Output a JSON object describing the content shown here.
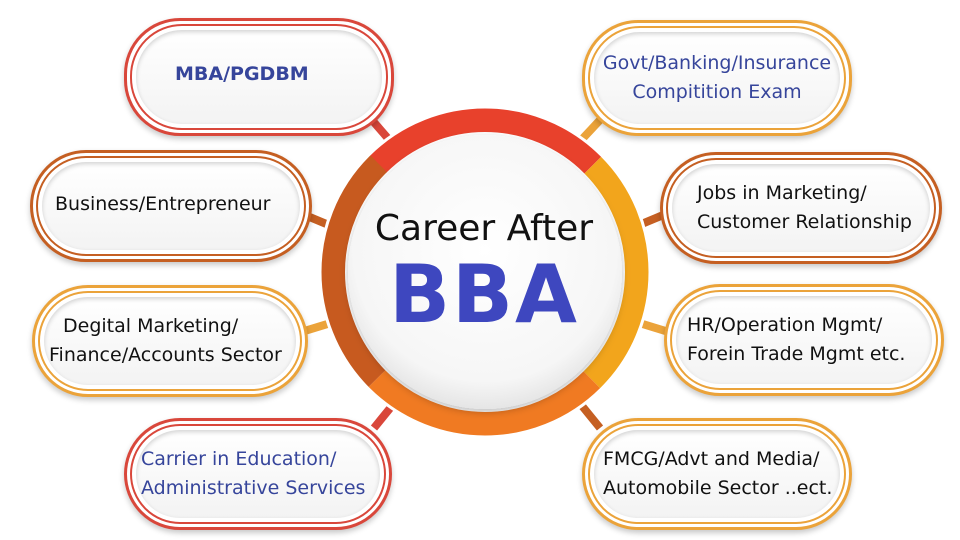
{
  "hub": {
    "line1": "Career After",
    "line2": "BBA"
  },
  "options": [
    {
      "id": "p1",
      "lines": [
        "MBA/PGDBM"
      ]
    },
    {
      "id": "p2",
      "lines": [
        "Business/Entrepreneur"
      ]
    },
    {
      "id": "p3",
      "lines": [
        "Degital Marketing/",
        "Finance/Accounts Sector"
      ]
    },
    {
      "id": "p4",
      "lines": [
        "Carrier in Education/",
        "Administrative Services"
      ]
    },
    {
      "id": "p5",
      "lines": [
        "Govt/Banking/Insurance",
        "Compitition Exam"
      ]
    },
    {
      "id": "p6",
      "lines": [
        "Jobs in Marketing/",
        "Customer Relationship"
      ]
    },
    {
      "id": "p7",
      "lines": [
        "HR/Operation Mgmt/",
        "Forein Trade Mgmt etc."
      ]
    },
    {
      "id": "p8",
      "lines": [
        "FMCG/Advt and Media/",
        "Automobile Sector ..ect."
      ]
    }
  ],
  "colors": {
    "ring_red": "#e8412c",
    "ring_orange": "#f07a22",
    "ring_brown": "#c75a1f",
    "ring_gold": "#f2a51c",
    "hub_title": "#3e47bf",
    "option_blue_text": "#36459b"
  }
}
